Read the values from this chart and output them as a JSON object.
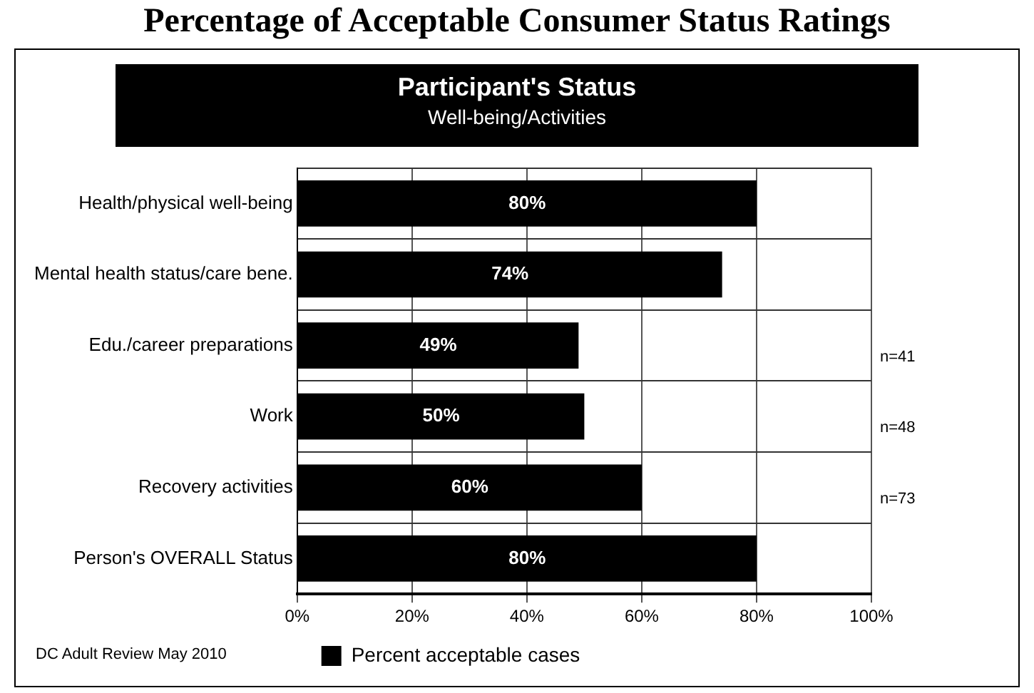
{
  "chart_data": {
    "type": "bar",
    "orientation": "horizontal",
    "title": "Percentage of Acceptable Consumer Status Ratings",
    "subtitle": "Participant's Status",
    "categories": [
      "Health/physical well-being",
      "Mental health status/care bene.",
      "Edu./career preparations",
      "Work",
      "Recovery activities",
      "Person's OVERALL Status"
    ],
    "series": [
      {
        "name": "Percent acceptable cases",
        "color": "#000000",
        "values": [
          80,
          74,
          49,
          50,
          60,
          80
        ],
        "value_labels": [
          "80%",
          "74%",
          "49%",
          "50%",
          "60%",
          "80%"
        ]
      }
    ],
    "xlim": [
      0,
      100
    ],
    "xticks": [
      {
        "value": 0,
        "label": "0%"
      },
      {
        "value": 20,
        "label": "20%"
      },
      {
        "value": 40,
        "label": "40%"
      },
      {
        "value": 60,
        "label": "60%"
      },
      {
        "value": 80,
        "label": "80%"
      },
      {
        "value": 100,
        "label": "100%"
      }
    ],
    "grid": true,
    "legend": "bottom",
    "annotations": [
      "Well-being/Activities",
      "n=41",
      "n=48",
      "n=73",
      "DC Adult Review May 2010"
    ]
  }
}
